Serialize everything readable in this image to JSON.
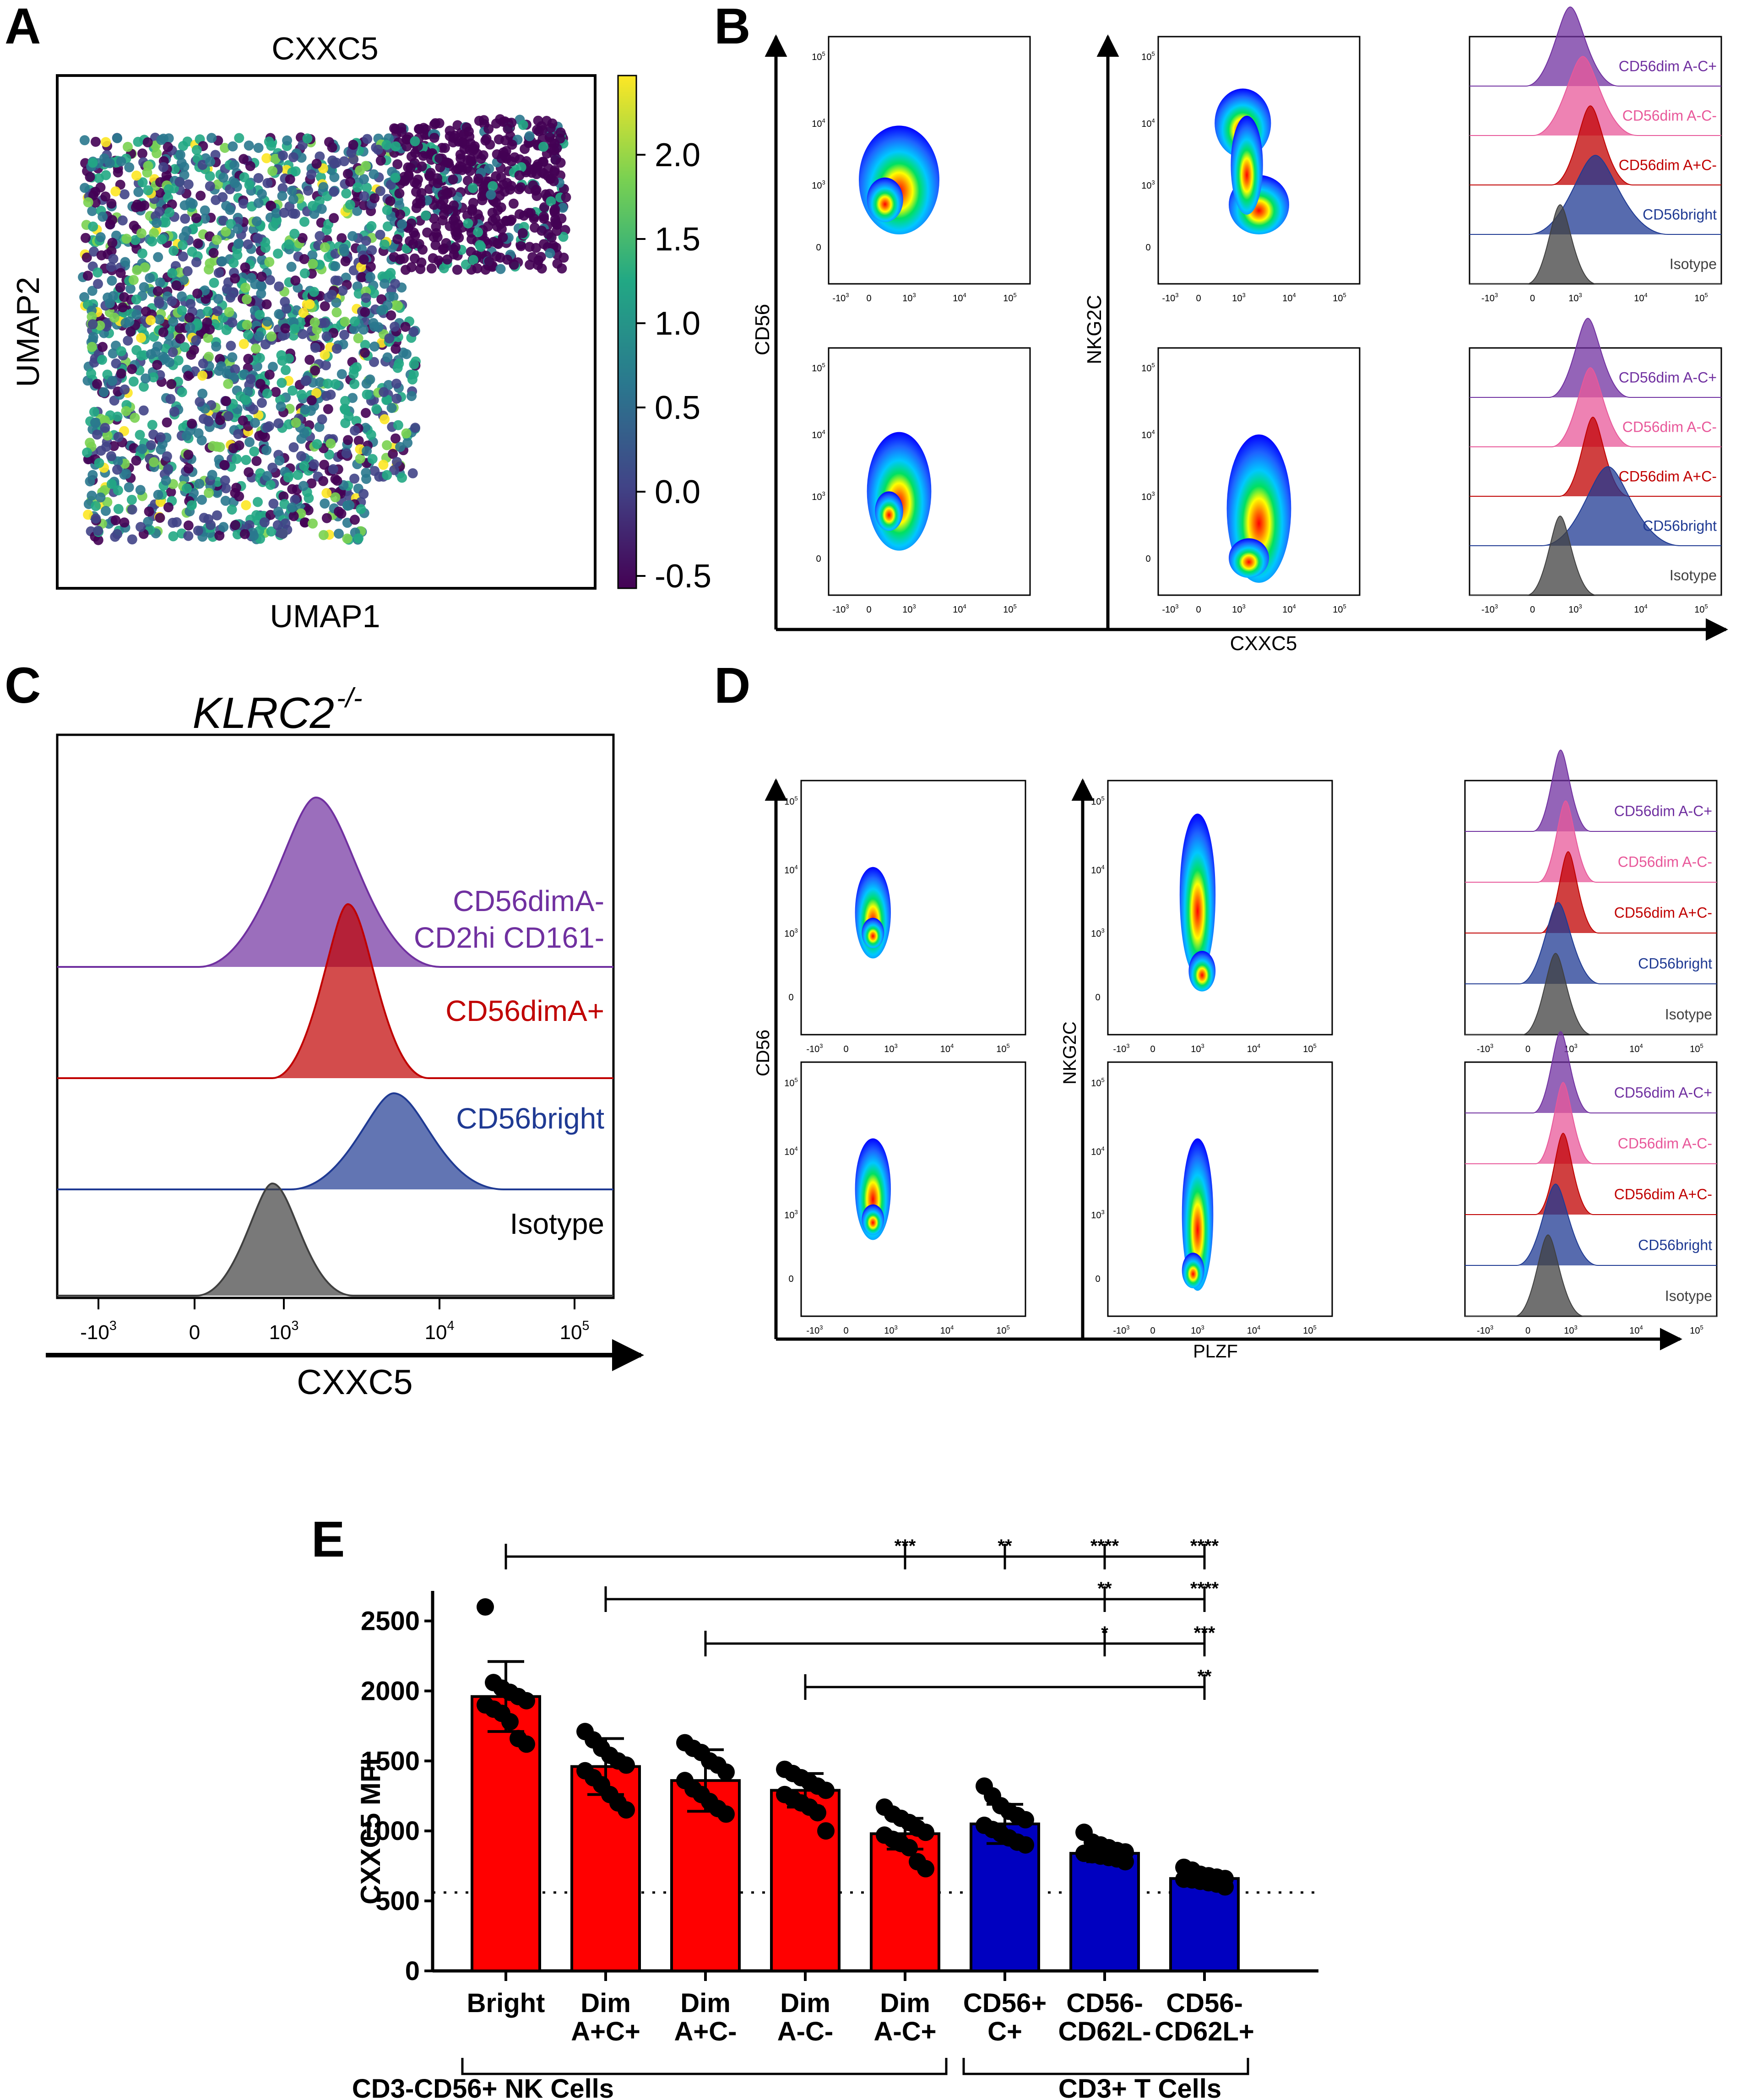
{
  "panel_letters": [
    "A",
    "B",
    "C",
    "D",
    "E"
  ],
  "colors": {
    "viridis": [
      "#440154",
      "#414487",
      "#2a788e",
      "#22a884",
      "#7ad151",
      "#fde725"
    ],
    "dim_ac_plus": "#7030a0",
    "dim_ac_minus": "#e8589a",
    "dim_a_plus_c_minus": "#c00000",
    "bright": "#1f3a93",
    "isotype": "#404040",
    "nk_bar": "#ff0000",
    "t_bar": "#0000c0"
  },
  "panelA": {
    "title": "CXXC5",
    "xlabel": "UMAP1",
    "ylabel": "UMAP2",
    "colorbar_ticks": [
      "2.0",
      "1.5",
      "1.0",
      "0.5",
      "0.0",
      "-0.5"
    ]
  },
  "panelB": {
    "xlabel": "CXXC5",
    "ylabel_left": "CD56",
    "ylabel_mid": "NKG2C",
    "hist_labels": [
      "CD56dim A-C+",
      "CD56dim A-C-",
      "CD56dim A+C-",
      "CD56bright",
      "Isotype"
    ]
  },
  "panelC": {
    "title": "KLRC2",
    "title_sup": "-/-",
    "xlabel": "CXXC5",
    "labels": [
      "CD56dimA-",
      "CD2hi CD161-",
      "CD56dimA+",
      "CD56bright",
      "Isotype"
    ],
    "ticks": [
      "-10",
      "0",
      "10",
      "10",
      "10"
    ],
    "tick_sups": [
      "3",
      "",
      "3",
      "4",
      "5"
    ]
  },
  "panelD": {
    "xlabel": "PLZF",
    "ylabel_left": "CD56",
    "ylabel_mid": "NKG2C",
    "hist_labels": [
      "CD56dim A-C+",
      "CD56dim A-C-",
      "CD56dim A+C-",
      "CD56bright",
      "Isotype"
    ]
  },
  "flow_ticks": {
    "x": [
      "-10",
      "0",
      "10",
      "10",
      "10"
    ],
    "x_sups": [
      "3",
      "",
      "3",
      "4",
      "5"
    ],
    "y": [
      "0",
      "10",
      "10",
      "10"
    ],
    "y_sups": [
      "",
      "3",
      "4",
      "5"
    ]
  },
  "chart_data": {
    "type": "bar",
    "title": "E",
    "ylabel": "CXXC5 MFI",
    "ylim": [
      0,
      2700
    ],
    "yticks": [
      0,
      500,
      1000,
      1500,
      2000,
      2500
    ],
    "isotype_line": 560,
    "categories": [
      "Bright",
      "Dim A+C+",
      "Dim A+C-",
      "Dim A-C-",
      "Dim A-C+",
      "CD56+ C+",
      "CD56- CD62L-",
      "CD56- CD62L+"
    ],
    "category_lines": [
      [
        "Bright"
      ],
      [
        "Dim",
        "A+C+"
      ],
      [
        "Dim",
        "A+C-"
      ],
      [
        "Dim",
        "A-C-"
      ],
      [
        "Dim",
        "A-C+"
      ],
      [
        "CD56+",
        "C+"
      ],
      [
        "CD56-",
        "CD62L-"
      ],
      [
        "CD56-",
        "CD62L+"
      ]
    ],
    "values": [
      1960,
      1460,
      1360,
      1290,
      980,
      1050,
      840,
      660
    ],
    "sd": [
      250,
      200,
      220,
      120,
      110,
      140,
      60,
      40
    ],
    "points": [
      [
        2600,
        2060,
        2020,
        1990,
        1960,
        1930,
        1900,
        1870,
        1840,
        1780,
        1660,
        1620
      ],
      [
        1710,
        1650,
        1590,
        1540,
        1500,
        1470,
        1430,
        1380,
        1330,
        1260,
        1200,
        1150
      ],
      [
        1630,
        1590,
        1560,
        1500,
        1470,
        1420,
        1360,
        1300,
        1260,
        1210,
        1160,
        1120
      ],
      [
        1440,
        1410,
        1380,
        1350,
        1320,
        1290,
        1260,
        1230,
        1200,
        1170,
        1130,
        1000
      ],
      [
        1170,
        1120,
        1090,
        1060,
        1020,
        990,
        970,
        940,
        910,
        880,
        780,
        730
      ],
      [
        1320,
        1250,
        1180,
        1140,
        1110,
        1080,
        1040,
        1010,
        980,
        950,
        920,
        900
      ],
      [
        990,
        920,
        900,
        880,
        860,
        850,
        840,
        830,
        820,
        810,
        800,
        780
      ],
      [
        740,
        720,
        690,
        680,
        670,
        660,
        655,
        650,
        640,
        630,
        620,
        600
      ]
    ],
    "series_colors": [
      "#ff0000",
      "#ff0000",
      "#ff0000",
      "#ff0000",
      "#ff0000",
      "#0000c0",
      "#0000c0",
      "#0000c0"
    ],
    "comparisons": [
      {
        "from": "Bright",
        "targets": [
          "Dim A-C+",
          "CD56+ C+",
          "CD56- CD62L-",
          "CD56- CD62L+"
        ],
        "stars": [
          "***",
          "**",
          "****",
          "****"
        ]
      },
      {
        "from": "Dim A+C+",
        "targets": [
          "CD56- CD62L-",
          "CD56- CD62L+"
        ],
        "stars": [
          "**",
          "****"
        ]
      },
      {
        "from": "Dim A+C-",
        "targets": [
          "CD56- CD62L-",
          "CD56- CD62L+"
        ],
        "stars": [
          "*",
          "***"
        ]
      },
      {
        "from": "Dim A-C-",
        "targets": [
          "CD56- CD62L+"
        ],
        "stars": [
          "**"
        ]
      }
    ],
    "group_labels": [
      "CD3-CD56+ NK Cells",
      "CD3+ T Cells"
    ]
  }
}
